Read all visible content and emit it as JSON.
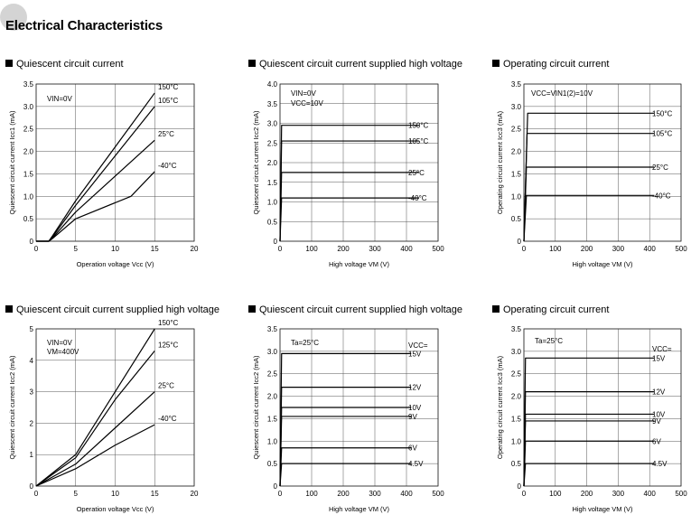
{
  "page": {
    "title": "Electrical Characteristics"
  },
  "chart_data": [
    {
      "id": "c1",
      "type": "line",
      "title": "Quiescent circuit current",
      "xlabel": "Operation voltage  Vcc (V)",
      "ylabel": "Quiescent circuit current  Icc1 (mA)",
      "xlim": [
        0,
        20
      ],
      "ylim": [
        0,
        3.5
      ],
      "xticks": [
        0,
        5,
        10,
        15,
        20
      ],
      "yticks": [
        0,
        0.5,
        1.0,
        1.5,
        2.0,
        2.5,
        3.0,
        3.5
      ],
      "ytick_labels": [
        "0",
        "0.5",
        "1.0",
        "1.5",
        "2.0",
        "2.5",
        "3.0",
        "3.5"
      ],
      "annotations": [
        "VIN=0V"
      ],
      "series": [
        {
          "name": "150°C",
          "points": [
            [
              0,
              0
            ],
            [
              1.6,
              0
            ],
            [
              2,
              0.1
            ],
            [
              5,
              0.9
            ],
            [
              10,
              2.1
            ],
            [
              15,
              3.3
            ]
          ]
        },
        {
          "name": "105°C",
          "points": [
            [
              0,
              0
            ],
            [
              1.6,
              0
            ],
            [
              2,
              0.08
            ],
            [
              5,
              0.8
            ],
            [
              10,
              1.9
            ],
            [
              15,
              3.0
            ]
          ]
        },
        {
          "name": "25°C",
          "points": [
            [
              0,
              0
            ],
            [
              1.6,
              0
            ],
            [
              2,
              0.06
            ],
            [
              5,
              0.65
            ],
            [
              10,
              1.45
            ],
            [
              15,
              2.25
            ]
          ]
        },
        {
          "name": "-40°C",
          "points": [
            [
              0,
              0
            ],
            [
              1.6,
              0
            ],
            [
              2,
              0.05
            ],
            [
              5,
              0.5
            ],
            [
              12,
              1.0
            ],
            [
              15,
              1.55
            ]
          ]
        }
      ]
    },
    {
      "id": "c2",
      "type": "line",
      "title": "Quiescent circuit current supplied high voltage",
      "xlabel": "High voltage  VM (V)",
      "ylabel": "Quiescent circuit current  Icc2 (mA)",
      "xlim": [
        0,
        500
      ],
      "ylim": [
        0,
        4.0
      ],
      "xticks": [
        0,
        100,
        200,
        300,
        400,
        500
      ],
      "yticks": [
        0,
        0.5,
        1.0,
        1.5,
        2.0,
        2.5,
        3.0,
        3.5,
        4.0
      ],
      "ytick_labels": [
        "0",
        "0.5",
        "1.0",
        "1.5",
        "2.0",
        "2.5",
        "3.0",
        "3.5",
        "4.0"
      ],
      "annotations": [
        "VIN=0V",
        "VCC=10V"
      ],
      "series": [
        {
          "name": "150°C",
          "points": [
            [
              0,
              0
            ],
            [
              5,
              2.95
            ],
            [
              440,
              2.95
            ]
          ]
        },
        {
          "name": "105°C",
          "points": [
            [
              0,
              0
            ],
            [
              5,
              2.55
            ],
            [
              440,
              2.55
            ]
          ]
        },
        {
          "name": "25°C",
          "points": [
            [
              0,
              0
            ],
            [
              5,
              1.75
            ],
            [
              440,
              1.75
            ]
          ]
        },
        {
          "name": "-40°C",
          "points": [
            [
              0,
              0
            ],
            [
              5,
              1.1
            ],
            [
              440,
              1.1
            ]
          ]
        }
      ]
    },
    {
      "id": "c3",
      "type": "line",
      "title": "Operating circuit current",
      "xlabel": "High voltage  VM (V)",
      "ylabel": "Operating circuit current  Icc3 (mA)",
      "xlim": [
        0,
        500
      ],
      "ylim": [
        0,
        3.5
      ],
      "xticks": [
        0,
        100,
        200,
        300,
        400,
        500
      ],
      "yticks": [
        0,
        0.5,
        1.0,
        1.5,
        2.0,
        2.5,
        3.0,
        3.5
      ],
      "ytick_labels": [
        "0",
        "0.5",
        "1.0",
        "1.5",
        "2.0",
        "2.5",
        "3.0",
        "3.5"
      ],
      "annotations": [
        "VCC=VIN1(2)=10V"
      ],
      "series": [
        {
          "name": "150°C",
          "points": [
            [
              0,
              0
            ],
            [
              12,
              2.85
            ],
            [
              415,
              2.85
            ]
          ]
        },
        {
          "name": "105°C",
          "points": [
            [
              0,
              0
            ],
            [
              10,
              2.4
            ],
            [
              415,
              2.4
            ]
          ]
        },
        {
          "name": "25°C",
          "points": [
            [
              0,
              0
            ],
            [
              8,
              1.65
            ],
            [
              415,
              1.65
            ]
          ]
        },
        {
          "name": "-40°C",
          "points": [
            [
              0,
              0
            ],
            [
              8,
              1.02
            ],
            [
              415,
              1.02
            ]
          ]
        }
      ]
    },
    {
      "id": "c4",
      "type": "line",
      "title": "Quiescent circuit current supplied high voltage",
      "xlabel": "Operation voltage  Vcc (V)",
      "ylabel": "Quiescent circuit current  Icc2 (mA)",
      "xlim": [
        0,
        20
      ],
      "ylim": [
        0,
        5
      ],
      "xticks": [
        0,
        5,
        10,
        15,
        20
      ],
      "yticks": [
        0,
        1,
        2,
        3,
        4,
        5
      ],
      "ytick_labels": [
        "0",
        "1",
        "2",
        "3",
        "4",
        "5"
      ],
      "annotations": [
        "VIN=0V",
        "VM=400V"
      ],
      "series": [
        {
          "name": "150°C",
          "points": [
            [
              0,
              0
            ],
            [
              5,
              1.0
            ],
            [
              10,
              3.0
            ],
            [
              15,
              5.0
            ]
          ]
        },
        {
          "name": "125°C",
          "points": [
            [
              0,
              0
            ],
            [
              5,
              0.9
            ],
            [
              10,
              2.75
            ],
            [
              15,
              4.3
            ]
          ]
        },
        {
          "name": "25°C",
          "points": [
            [
              0,
              0
            ],
            [
              5,
              0.7
            ],
            [
              10,
              1.85
            ],
            [
              15,
              3.0
            ]
          ]
        },
        {
          "name": "-40°C",
          "points": [
            [
              0,
              0
            ],
            [
              5,
              0.55
            ],
            [
              10,
              1.3
            ],
            [
              15,
              1.95
            ]
          ]
        }
      ]
    },
    {
      "id": "c5",
      "type": "line",
      "title": "Quiescent circuit current supplied high voltage",
      "xlabel": "High voltage  VM (V)",
      "ylabel": "Quiescent circuit current  Icc2 (mA)",
      "xlim": [
        0,
        500
      ],
      "ylim": [
        0,
        3.5
      ],
      "xticks": [
        0,
        100,
        200,
        300,
        400,
        500
      ],
      "yticks": [
        0,
        0.5,
        1.0,
        1.5,
        2.0,
        2.5,
        3.0,
        3.5
      ],
      "ytick_labels": [
        "0",
        "0.5",
        "1.0",
        "1.5",
        "2.0",
        "2.5",
        "3.0",
        "3.5"
      ],
      "annotations": [
        "Ta=25°C",
        "VCC="
      ],
      "series": [
        {
          "name": "15V",
          "points": [
            [
              0,
              0
            ],
            [
              5,
              2.95
            ],
            [
              415,
              2.95
            ]
          ]
        },
        {
          "name": "12V",
          "points": [
            [
              0,
              0
            ],
            [
              5,
              2.2
            ],
            [
              415,
              2.2
            ]
          ]
        },
        {
          "name": "10V",
          "points": [
            [
              0,
              0
            ],
            [
              5,
              1.75
            ],
            [
              415,
              1.75
            ]
          ]
        },
        {
          "name": "9V",
          "points": [
            [
              0,
              0
            ],
            [
              5,
              1.55
            ],
            [
              415,
              1.55
            ]
          ]
        },
        {
          "name": "6V",
          "points": [
            [
              0,
              0
            ],
            [
              5,
              0.85
            ],
            [
              415,
              0.85
            ]
          ]
        },
        {
          "name": "4.5V",
          "points": [
            [
              0,
              0
            ],
            [
              5,
              0.5
            ],
            [
              415,
              0.5
            ]
          ]
        }
      ]
    },
    {
      "id": "c6",
      "type": "line",
      "title": "Operating circuit current",
      "xlabel": "High voltage  VM (V)",
      "ylabel": "Operating circuit current  Icc3 (mA)",
      "xlim": [
        0,
        500
      ],
      "ylim": [
        0,
        3.5
      ],
      "xticks": [
        0,
        100,
        200,
        300,
        400,
        500
      ],
      "yticks": [
        0,
        0.5,
        1.0,
        1.5,
        2.0,
        2.5,
        3.0,
        3.5
      ],
      "ytick_labels": [
        "0",
        "0.5",
        "1.0",
        "1.5",
        "2.0",
        "2.5",
        "3.0",
        "3.5"
      ],
      "annotations": [
        "Ta=25°C",
        "VCC="
      ],
      "series": [
        {
          "name": "15V",
          "points": [
            [
              0,
              0
            ],
            [
              5,
              2.85
            ],
            [
              415,
              2.85
            ]
          ]
        },
        {
          "name": "12V",
          "points": [
            [
              0,
              0
            ],
            [
              5,
              2.1
            ],
            [
              415,
              2.1
            ]
          ]
        },
        {
          "name": "10V",
          "points": [
            [
              0,
              0
            ],
            [
              5,
              1.6
            ],
            [
              415,
              1.6
            ]
          ]
        },
        {
          "name": "9V",
          "points": [
            [
              0,
              0
            ],
            [
              5,
              1.45
            ],
            [
              415,
              1.45
            ]
          ]
        },
        {
          "name": "6V",
          "points": [
            [
              0,
              0
            ],
            [
              5,
              1.0
            ],
            [
              415,
              1.0
            ]
          ]
        },
        {
          "name": "4.5V",
          "points": [
            [
              0,
              0
            ],
            [
              5,
              0.5
            ],
            [
              415,
              0.5
            ]
          ]
        }
      ]
    }
  ]
}
